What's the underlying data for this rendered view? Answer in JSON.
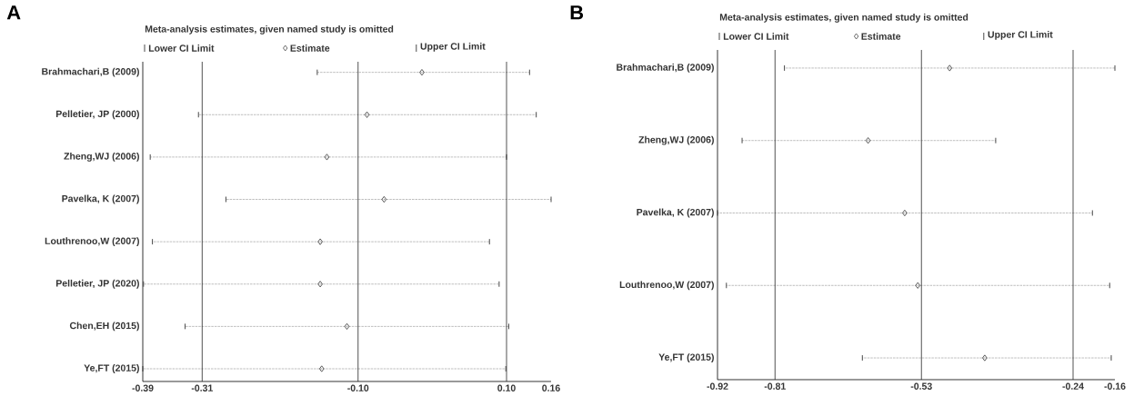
{
  "chart_data": [
    {
      "type": "scatter",
      "orientation": "horizontal",
      "title": "A",
      "subtitle": "Meta-analysis estimates, given named study is omitted",
      "categories": [
        "Brahmachari,B (2009)",
        "Pelletier, JP (2000)",
        "Zheng,WJ (2006)",
        "Pavelka, K (2007)",
        "Louthrenoo,W (2007)",
        "Pelletier, JP (2020)",
        "Chen,EH (2015)",
        "Ye,FT (2015)"
      ],
      "series": [
        {
          "name": "Estimate",
          "color": "#333333",
          "values": [
            -0.014,
            -0.088,
            -0.142,
            -0.065,
            -0.151,
            -0.151,
            -0.115,
            -0.149
          ],
          "errors": [
            [
              -0.155,
              0.131
            ],
            [
              -0.315,
              0.14
            ],
            [
              -0.38,
              0.1
            ],
            [
              -0.278,
              0.16
            ],
            [
              -0.377,
              0.077
            ],
            [
              -0.389,
              0.09
            ],
            [
              -0.333,
              0.103
            ],
            [
              -0.39,
              0.099
            ]
          ]
        }
      ],
      "marker": "diamond",
      "legend": "top",
      "annotations": [
        "Lower CI Limit",
        "Upper CI Limit"
      ],
      "xlim": [
        -0.39,
        0.16
      ],
      "xticks": [
        -0.39,
        -0.31,
        {
          "value": -0.1,
          "label": "-0.10"
        },
        {
          "value": 0.1,
          "label": "0.10"
        },
        0.16
      ],
      "ref_lines": [
        {
          "axis": "x",
          "value": -0.31
        },
        {
          "axis": "x",
          "value": -0.1
        },
        {
          "axis": "x",
          "value": 0.1
        }
      ]
    },
    {
      "type": "scatter",
      "orientation": "horizontal",
      "title": "B",
      "subtitle": "Meta-analysis estimates, given named study is omitted",
      "categories": [
        "Brahmachari,B (2009)",
        "Zheng,WJ (2006)",
        "Pavelka, K (2007)",
        "Louthrenoo,W (2007)",
        "Ye,FT (2015)"
      ],
      "series": [
        {
          "name": "Estimate",
          "color": "#333333",
          "values": [
            -0.476,
            -0.632,
            -0.562,
            -0.537,
            -0.409
          ],
          "errors": [
            [
              -0.792,
              -0.16
            ],
            [
              -0.873,
              -0.388
            ],
            [
              -0.92,
              -0.203
            ],
            [
              -0.903,
              -0.17
            ],
            [
              -0.643,
              -0.167
            ]
          ]
        }
      ],
      "marker": "diamond",
      "legend": "top",
      "annotations": [
        "Lower CI Limit",
        "Upper CI Limit"
      ],
      "xlim": [
        -0.92,
        -0.16
      ],
      "xticks": [
        -0.92,
        -0.81,
        -0.53,
        -0.24,
        -0.16
      ],
      "ref_lines": [
        {
          "axis": "x",
          "value": -0.81
        },
        {
          "axis": "x",
          "value": -0.53
        },
        {
          "axis": "x",
          "value": -0.24
        }
      ]
    }
  ]
}
